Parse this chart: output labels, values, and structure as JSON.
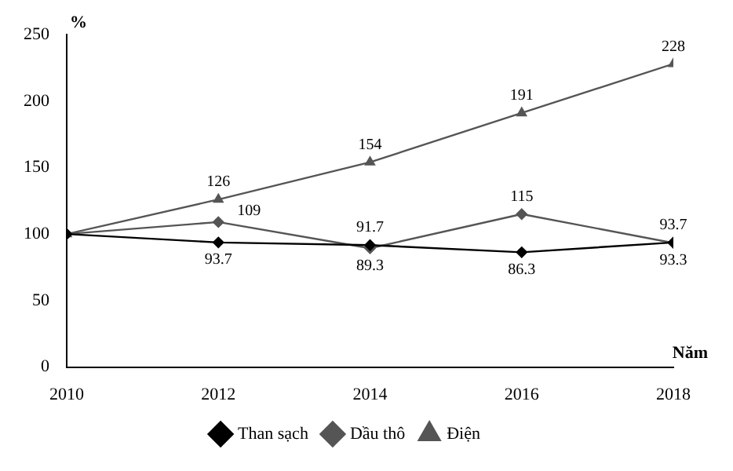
{
  "chart_data": {
    "type": "line",
    "xlabel": "Năm",
    "ylabel": "%",
    "x": [
      2010,
      2012,
      2014,
      2016,
      2018
    ],
    "xlim": [
      2010,
      2018
    ],
    "xticks": [
      2010,
      2012,
      2014,
      2016,
      2018
    ],
    "ylim": [
      0,
      250
    ],
    "yticks": [
      0,
      50,
      100,
      150,
      200,
      250
    ],
    "grid": false,
    "legend": "bottom",
    "series": [
      {
        "name": "Than sạch",
        "color": "#000000",
        "marker": "diamond",
        "values": [
          100,
          93.7,
          91.7,
          86.3,
          93.7
        ],
        "value_labels": [
          null,
          "93.7",
          "91.7",
          "86.3",
          "93.7"
        ]
      },
      {
        "name": "Dầu thô",
        "color": "#555555",
        "marker": "diamond",
        "values": [
          100,
          109,
          89.3,
          115,
          93.3
        ],
        "value_labels": [
          null,
          "109",
          "89.3",
          "115",
          "93.3"
        ]
      },
      {
        "name": "Điện",
        "color": "#555555",
        "marker": "triangle",
        "values": [
          100,
          126,
          154,
          191,
          228
        ],
        "value_labels": [
          null,
          "126",
          "154",
          "191",
          "228"
        ]
      }
    ]
  }
}
